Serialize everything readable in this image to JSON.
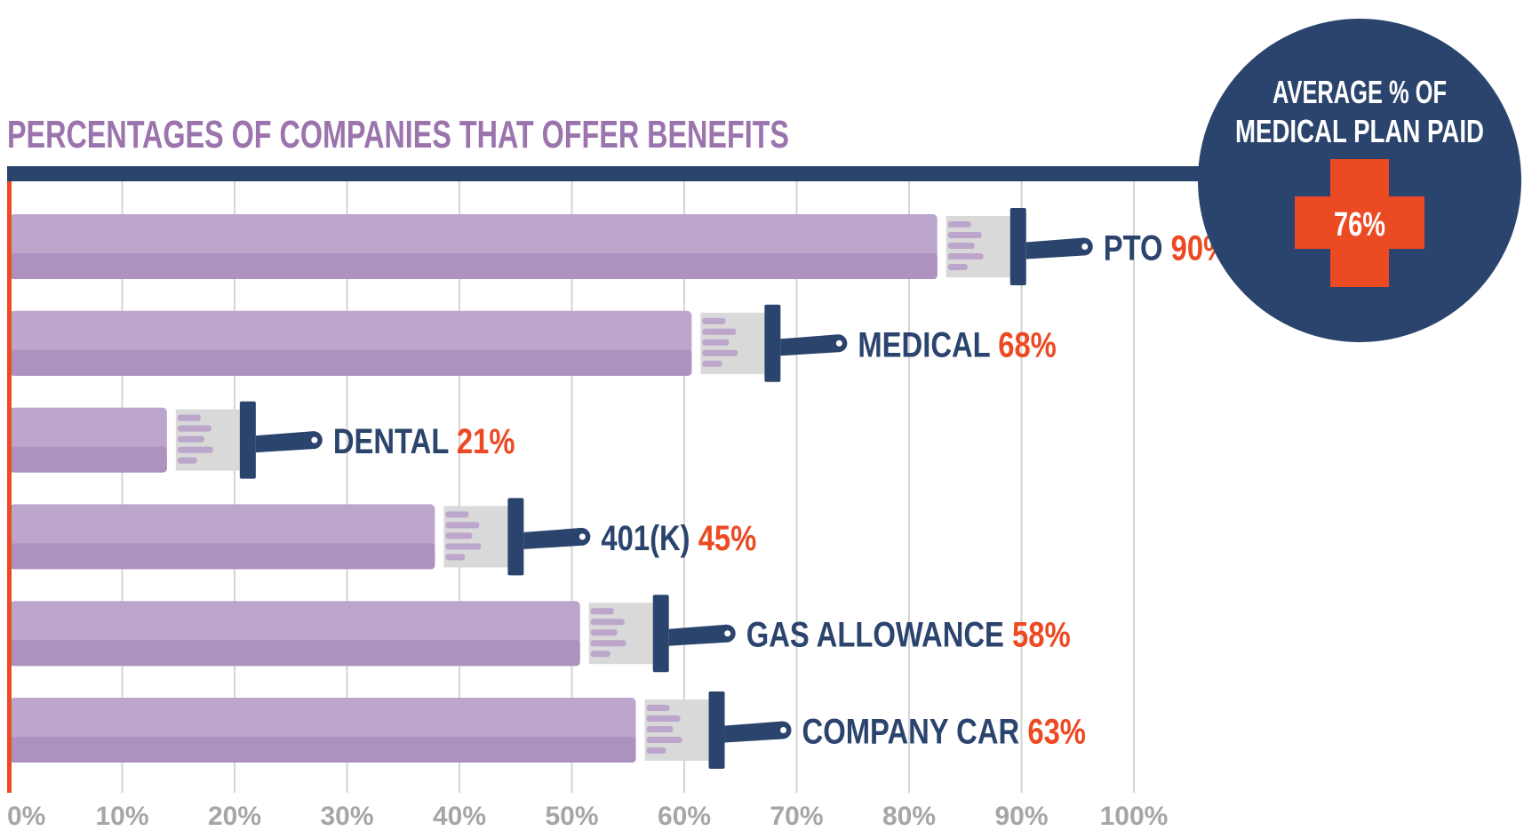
{
  "chart_data": {
    "type": "bar",
    "orientation": "horizontal",
    "title": "PERCENTAGES OF COMPANIES THAT OFFER BENEFITS",
    "categories": [
      "PTO",
      "MEDICAL",
      "DENTAL",
      "401(K)",
      "GAS ALLOWANCE",
      "COMPANY CAR"
    ],
    "values": [
      90,
      68,
      21,
      45,
      58,
      63
    ],
    "value_labels": [
      "90%",
      "68%",
      "21%",
      "45%",
      "58%",
      "63%"
    ],
    "xlim": [
      0,
      100
    ],
    "x_ticks": [
      "0%",
      "10%",
      "20%",
      "30%",
      "40%",
      "50%",
      "60%",
      "70%",
      "80%",
      "90%",
      "100%"
    ],
    "grid": true,
    "callout": {
      "title_line1": "AVERAGE % OF",
      "title_line2": "MEDICAL PLAN PAID",
      "value": "76%",
      "percent": 76
    },
    "colors": {
      "bar": "#bca6cc",
      "bar_shadow": "#ad92c0",
      "title": "#9b74ad",
      "navy": "#2b446d",
      "orange": "#eb4a23",
      "grid": "#d5d5d5",
      "tick": "#a6a6a6",
      "brush_ferrule": "#d9d9d9"
    }
  }
}
